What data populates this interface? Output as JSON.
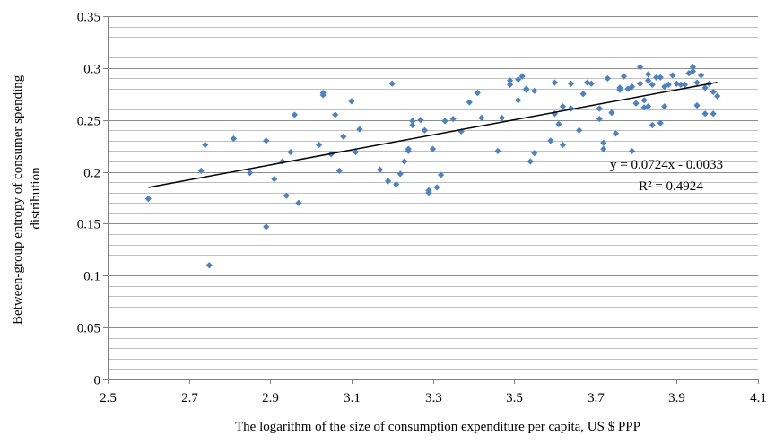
{
  "chart_data": {
    "type": "scatter",
    "title": "",
    "xlabel": "The logarithm of the size of consumption expenditure per capita, US $ PPP",
    "ylabel_lines": [
      "Between-group entropy of consumer spending",
      "distribution"
    ],
    "xlim": [
      2.5,
      4.1
    ],
    "ylim": [
      0,
      0.35
    ],
    "x_ticks": [
      2.5,
      2.7,
      2.9,
      3.1,
      3.3,
      3.5,
      3.7,
      3.9,
      4.1
    ],
    "x_tick_labels": [
      "2.5",
      "2.7",
      "2.9",
      "3.1",
      "3.3",
      "3.5",
      "3.7",
      "3.9",
      "4.1"
    ],
    "y_ticks": [
      0,
      0.05,
      0.1,
      0.15,
      0.2,
      0.25,
      0.3,
      0.35
    ],
    "y_tick_labels": [
      "0",
      "0.05",
      "0.1",
      "0.15",
      "0.2",
      "0.25",
      "0.3",
      "0.35"
    ],
    "y_minor_step": 0.01,
    "grid": true,
    "legend": "none",
    "marker_color": "#4f81bd",
    "trendline_color": "#000000",
    "equation_label": "y = 0.0724x - 0.0033",
    "r2_label": "R² = 0.4924",
    "trendline": {
      "slope": 0.0724,
      "intercept": -0.0033,
      "x_range": [
        2.6,
        4.0
      ]
    },
    "points": [
      [
        2.6,
        0.174
      ],
      [
        2.73,
        0.201
      ],
      [
        2.74,
        0.226
      ],
      [
        2.75,
        0.11
      ],
      [
        2.81,
        0.232
      ],
      [
        2.85,
        0.199
      ],
      [
        2.89,
        0.147
      ],
      [
        2.89,
        0.23
      ],
      [
        2.91,
        0.193
      ],
      [
        2.93,
        0.21
      ],
      [
        2.94,
        0.177
      ],
      [
        2.95,
        0.219
      ],
      [
        2.96,
        0.255
      ],
      [
        2.97,
        0.17
      ],
      [
        3.02,
        0.226
      ],
      [
        3.03,
        0.274
      ],
      [
        3.03,
        0.276
      ],
      [
        3.05,
        0.217
      ],
      [
        3.06,
        0.255
      ],
      [
        3.07,
        0.201
      ],
      [
        3.08,
        0.234
      ],
      [
        3.1,
        0.268
      ],
      [
        3.11,
        0.219
      ],
      [
        3.12,
        0.241
      ],
      [
        3.17,
        0.202
      ],
      [
        3.19,
        0.191
      ],
      [
        3.2,
        0.285
      ],
      [
        3.21,
        0.188
      ],
      [
        3.22,
        0.198
      ],
      [
        3.23,
        0.21
      ],
      [
        3.24,
        0.222
      ],
      [
        3.24,
        0.22
      ],
      [
        3.25,
        0.249
      ],
      [
        3.25,
        0.245
      ],
      [
        3.27,
        0.25
      ],
      [
        3.28,
        0.24
      ],
      [
        3.29,
        0.18
      ],
      [
        3.29,
        0.182
      ],
      [
        3.3,
        0.222
      ],
      [
        3.31,
        0.185
      ],
      [
        3.32,
        0.197
      ],
      [
        3.33,
        0.249
      ],
      [
        3.35,
        0.251
      ],
      [
        3.37,
        0.239
      ],
      [
        3.39,
        0.267
      ],
      [
        3.41,
        0.276
      ],
      [
        3.42,
        0.252
      ],
      [
        3.46,
        0.22
      ],
      [
        3.47,
        0.252
      ],
      [
        3.49,
        0.284
      ],
      [
        3.49,
        0.288
      ],
      [
        3.51,
        0.269
      ],
      [
        3.51,
        0.289
      ],
      [
        3.52,
        0.292
      ],
      [
        3.53,
        0.28
      ],
      [
        3.53,
        0.279
      ],
      [
        3.54,
        0.21
      ],
      [
        3.55,
        0.218
      ],
      [
        3.55,
        0.278
      ],
      [
        3.59,
        0.23
      ],
      [
        3.6,
        0.256
      ],
      [
        3.6,
        0.286
      ],
      [
        3.61,
        0.246
      ],
      [
        3.62,
        0.226
      ],
      [
        3.62,
        0.263
      ],
      [
        3.64,
        0.261
      ],
      [
        3.64,
        0.285
      ],
      [
        3.66,
        0.24
      ],
      [
        3.67,
        0.275
      ],
      [
        3.68,
        0.286
      ],
      [
        3.69,
        0.285
      ],
      [
        3.71,
        0.261
      ],
      [
        3.71,
        0.251
      ],
      [
        3.72,
        0.228
      ],
      [
        3.72,
        0.222
      ],
      [
        3.73,
        0.29
      ],
      [
        3.74,
        0.257
      ],
      [
        3.75,
        0.237
      ],
      [
        3.76,
        0.281
      ],
      [
        3.76,
        0.279
      ],
      [
        3.77,
        0.292
      ],
      [
        3.78,
        0.28
      ],
      [
        3.79,
        0.22
      ],
      [
        3.79,
        0.282
      ],
      [
        3.8,
        0.266
      ],
      [
        3.81,
        0.301
      ],
      [
        3.81,
        0.285
      ],
      [
        3.82,
        0.269
      ],
      [
        3.82,
        0.262
      ],
      [
        3.83,
        0.263
      ],
      [
        3.83,
        0.294
      ],
      [
        3.83,
        0.288
      ],
      [
        3.84,
        0.245
      ],
      [
        3.84,
        0.284
      ],
      [
        3.85,
        0.291
      ],
      [
        3.86,
        0.291
      ],
      [
        3.86,
        0.247
      ],
      [
        3.87,
        0.263
      ],
      [
        3.87,
        0.282
      ],
      [
        3.88,
        0.284
      ],
      [
        3.89,
        0.293
      ],
      [
        3.9,
        0.285
      ],
      [
        3.91,
        0.284
      ],
      [
        3.92,
        0.284
      ],
      [
        3.93,
        0.295
      ],
      [
        3.94,
        0.301
      ],
      [
        3.94,
        0.297
      ],
      [
        3.95,
        0.286
      ],
      [
        3.95,
        0.264
      ],
      [
        3.96,
        0.293
      ],
      [
        3.97,
        0.256
      ],
      [
        3.97,
        0.281
      ],
      [
        3.98,
        0.285
      ],
      [
        3.99,
        0.256
      ],
      [
        3.99,
        0.277
      ],
      [
        4.0,
        0.273
      ]
    ]
  }
}
